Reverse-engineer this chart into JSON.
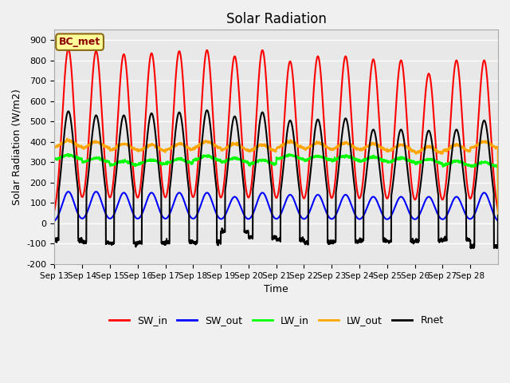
{
  "title": "Solar Radiation",
  "xlabel": "Time",
  "ylabel": "Solar Radiation (W/m2)",
  "ylim": [
    -200,
    950
  ],
  "yticks": [
    -200,
    -100,
    0,
    100,
    200,
    300,
    400,
    500,
    600,
    700,
    800,
    900
  ],
  "xtick_labels": [
    "Sep 13",
    "Sep 14",
    "Sep 15",
    "Sep 16",
    "Sep 17",
    "Sep 18",
    "Sep 19",
    "Sep 20",
    "Sep 21",
    "Sep 22",
    "Sep 23",
    "Sep 24",
    "Sep 25",
    "Sep 26",
    "Sep 27",
    "Sep 28"
  ],
  "colors": {
    "SW_in": "#FF0000",
    "SW_out": "#0000FF",
    "LW_in": "#00FF00",
    "LW_out": "#FFA500",
    "Rnet": "#000000"
  },
  "bg_color": "#E8E8E8",
  "fig_color": "#F0F0F0",
  "box_label": "BC_met",
  "box_facecolor": "#FFFF99",
  "box_edgecolor": "#8B6914",
  "n_days": 16,
  "SW_in_peaks": [
    855,
    845,
    830,
    835,
    845,
    850,
    820,
    850,
    795,
    820,
    820,
    805,
    800,
    735,
    800,
    800
  ],
  "SW_out_peaks": [
    155,
    155,
    150,
    150,
    150,
    150,
    130,
    150,
    140,
    140,
    140,
    130,
    130,
    130,
    130,
    150
  ],
  "LW_in_base": [
    315,
    300,
    285,
    290,
    295,
    310,
    300,
    290,
    315,
    310,
    310,
    305,
    300,
    295,
    285,
    280
  ],
  "LW_out_base": [
    375,
    370,
    360,
    355,
    360,
    370,
    360,
    355,
    370,
    365,
    365,
    360,
    355,
    345,
    355,
    370
  ],
  "Rnet_peaks": [
    550,
    530,
    530,
    540,
    545,
    555,
    525,
    545,
    505,
    510,
    515,
    460,
    460,
    455,
    460,
    505
  ],
  "Rnet_night": [
    -80,
    -95,
    -100,
    -95,
    -90,
    -95,
    -40,
    -70,
    -80,
    -95,
    -90,
    -85,
    -90,
    -85,
    -80,
    -115
  ],
  "grid_color": "#FFFFFF",
  "linewidth": 1.5
}
